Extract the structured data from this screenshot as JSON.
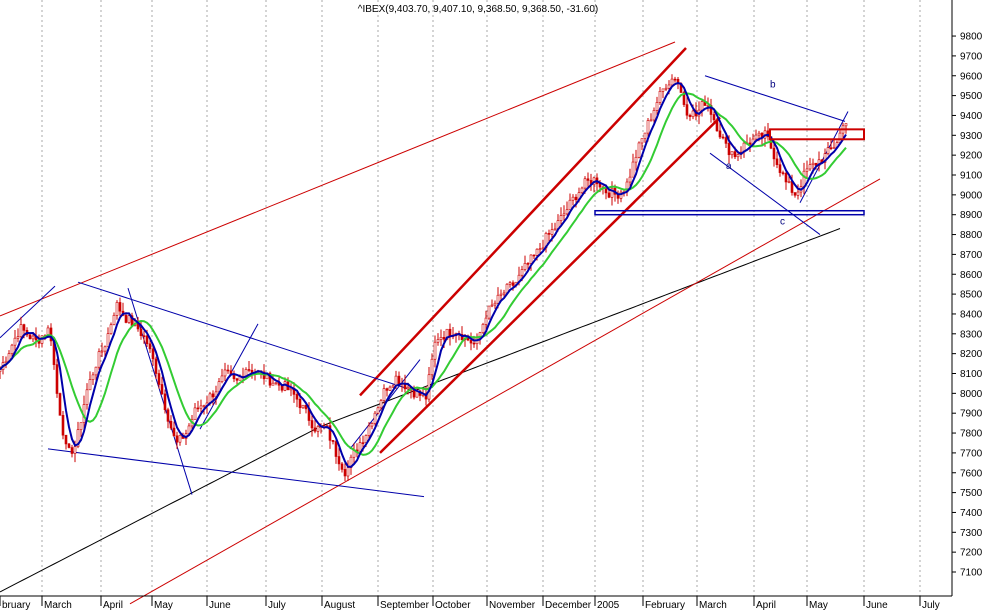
{
  "chart_data": {
    "type": "candlestick",
    "title": "^IBEX(9,403.70, 9,407.10, 9,368.50, 9,368.50, -31.60)",
    "x_axis": {
      "months": [
        "bruary",
        "March",
        "April",
        "May",
        "June",
        "July",
        "August",
        "September",
        "October",
        "November",
        "December",
        "2005",
        "February",
        "March",
        "April",
        "May",
        "June",
        "July"
      ]
    },
    "y_axis": {
      "position": "right",
      "ticks": [
        7100,
        7200,
        7300,
        7400,
        7500,
        7600,
        7700,
        7800,
        7900,
        8000,
        8100,
        8200,
        8300,
        8400,
        8500,
        8600,
        8700,
        8800,
        8900,
        9000,
        9100,
        9200,
        9300,
        9400,
        9500,
        9600,
        9700,
        9800
      ],
      "range": [
        7000,
        9900
      ]
    },
    "grid": "vertical-dotted-at-months",
    "colors": {
      "candles": "#cc0000",
      "ma_short": "#0000aa",
      "ma_medium": "#33cc33",
      "ma_long": "#000000",
      "trend_red": "#cc0000",
      "trend_blue": "#0000aa"
    },
    "price_keypoints": [
      [
        0,
        8120
      ],
      [
        20,
        8330
      ],
      [
        36,
        8260
      ],
      [
        50,
        8330
      ],
      [
        57,
        8000
      ],
      [
        67,
        7690
      ],
      [
        76,
        7740
      ],
      [
        86,
        8000
      ],
      [
        96,
        8150
      ],
      [
        106,
        8260
      ],
      [
        116,
        8450
      ],
      [
        126,
        8380
      ],
      [
        136,
        8340
      ],
      [
        146,
        8270
      ],
      [
        156,
        8120
      ],
      [
        166,
        7920
      ],
      [
        176,
        7740
      ],
      [
        186,
        7800
      ],
      [
        196,
        7920
      ],
      [
        206,
        7960
      ],
      [
        216,
        8020
      ],
      [
        226,
        8100
      ],
      [
        236,
        8050
      ],
      [
        246,
        8130
      ],
      [
        256,
        8110
      ],
      [
        266,
        8080
      ],
      [
        276,
        8050
      ],
      [
        286,
        8030
      ],
      [
        296,
        7980
      ],
      [
        306,
        7900
      ],
      [
        316,
        7820
      ],
      [
        326,
        7830
      ],
      [
        336,
        7700
      ],
      [
        346,
        7600
      ],
      [
        356,
        7720
      ],
      [
        366,
        7800
      ],
      [
        376,
        7920
      ],
      [
        386,
        8030
      ],
      [
        396,
        8080
      ],
      [
        406,
        8040
      ],
      [
        416,
        8000
      ],
      [
        426,
        7980
      ],
      [
        436,
        8280
      ],
      [
        446,
        8300
      ],
      [
        456,
        8320
      ],
      [
        466,
        8280
      ],
      [
        476,
        8240
      ],
      [
        486,
        8400
      ],
      [
        496,
        8460
      ],
      [
        506,
        8520
      ],
      [
        516,
        8560
      ],
      [
        526,
        8640
      ],
      [
        536,
        8700
      ],
      [
        546,
        8780
      ],
      [
        556,
        8840
      ],
      [
        566,
        8920
      ],
      [
        576,
        9000
      ],
      [
        586,
        9060
      ],
      [
        596,
        9080
      ],
      [
        606,
        9020
      ],
      [
        616,
        9000
      ],
      [
        626,
        9040
      ],
      [
        636,
        9200
      ],
      [
        646,
        9330
      ],
      [
        656,
        9460
      ],
      [
        666,
        9560
      ],
      [
        676,
        9600
      ],
      [
        686,
        9430
      ],
      [
        696,
        9400
      ],
      [
        706,
        9480
      ],
      [
        716,
        9360
      ],
      [
        726,
        9240
      ],
      [
        736,
        9200
      ],
      [
        746,
        9260
      ],
      [
        756,
        9280
      ],
      [
        766,
        9300
      ],
      [
        776,
        9180
      ],
      [
        786,
        9060
      ],
      [
        796,
        9000
      ],
      [
        806,
        9120
      ],
      [
        816,
        9160
      ],
      [
        826,
        9200
      ],
      [
        836,
        9260
      ],
      [
        846,
        9380
      ]
    ],
    "trendlines": [
      {
        "color": "red",
        "from": [
          0,
          8390
        ],
        "to": [
          675,
          9770
        ]
      },
      {
        "color": "red",
        "from": [
          130,
          6940
        ],
        "to": [
          880,
          9080
        ]
      },
      {
        "color": "red",
        "from": [
          360,
          7990
        ],
        "to": [
          686,
          9740
        ],
        "width": "thick"
      },
      {
        "color": "red",
        "from": [
          380,
          7700
        ],
        "to": [
          720,
          9390
        ],
        "width": "thick"
      },
      {
        "color": "blue",
        "from": [
          0,
          8280
        ],
        "to": [
          55,
          8540
        ]
      },
      {
        "color": "blue",
        "from": [
          48,
          7720
        ],
        "to": [
          424,
          7480
        ]
      },
      {
        "color": "blue",
        "from": [
          78,
          8560
        ],
        "to": [
          410,
          8020
        ]
      },
      {
        "color": "blue",
        "from": [
          128,
          8530
        ],
        "to": [
          192,
          7490
        ]
      },
      {
        "color": "blue",
        "from": [
          200,
          7820
        ],
        "to": [
          258,
          8350
        ]
      },
      {
        "color": "blue",
        "from": [
          350,
          7720
        ],
        "to": [
          420,
          8170
        ]
      },
      {
        "color": "blue",
        "from": [
          705,
          9600
        ],
        "to": [
          845,
          9370
        ]
      },
      {
        "color": "blue",
        "from": [
          710,
          9210
        ],
        "to": [
          820,
          8800
        ]
      },
      {
        "color": "blue",
        "from": [
          800,
          8960
        ],
        "to": [
          848,
          9420
        ]
      }
    ],
    "boxes": [
      {
        "color": "blue",
        "x1": 595,
        "x2": 864,
        "y_high": 8920,
        "y_low": 8900
      },
      {
        "color": "red",
        "x1": 770,
        "x2": 864,
        "y_high": 9330,
        "y_low": 9280
      }
    ],
    "annotations": [
      {
        "text": "a",
        "at": [
          726,
          9130
        ]
      },
      {
        "text": "b",
        "at": [
          770,
          9540
        ]
      },
      {
        "text": "c",
        "at": [
          780,
          8850
        ]
      }
    ]
  }
}
